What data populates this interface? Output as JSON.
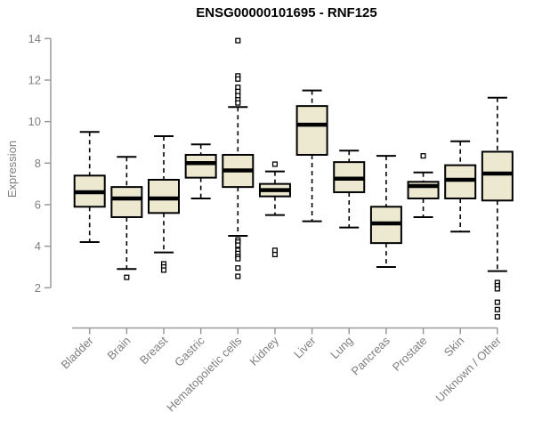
{
  "chart_data": {
    "type": "boxplot",
    "title": "ENSG00000101695 - RNF125",
    "ylabel": "Expression",
    "xlabel": "",
    "ylim": [
      2,
      14
    ],
    "yticks": [
      2,
      4,
      6,
      8,
      10,
      12,
      14
    ],
    "grid": false,
    "legend": "none",
    "categories": [
      "Bladder",
      "Brain",
      "Breast",
      "Gastric",
      "Hematopoietic cells",
      "Kidney",
      "Liver",
      "Lung",
      "Pancreas",
      "Prostate",
      "Skin",
      "Unknown / Other"
    ],
    "series": [
      {
        "category": "Bladder",
        "whisker_low": 4.2,
        "q1": 5.9,
        "median": 6.6,
        "q3": 7.4,
        "whisker_high": 9.5,
        "outliers": []
      },
      {
        "category": "Brain",
        "whisker_low": 2.9,
        "q1": 5.4,
        "median": 6.3,
        "q3": 6.85,
        "whisker_high": 8.3,
        "outliers": [
          2.5
        ]
      },
      {
        "category": "Breast",
        "whisker_low": 3.7,
        "q1": 5.6,
        "median": 6.3,
        "q3": 7.2,
        "whisker_high": 9.3,
        "outliers": [
          3.15,
          3.0,
          2.85
        ]
      },
      {
        "category": "Gastric",
        "whisker_low": 6.3,
        "q1": 7.3,
        "median": 8.0,
        "q3": 8.4,
        "whisker_high": 8.9,
        "outliers": []
      },
      {
        "category": "Hematopoietic cells",
        "whisker_low": 4.5,
        "q1": 6.85,
        "median": 7.65,
        "q3": 8.4,
        "whisker_high": 10.7,
        "outliers": [
          13.9,
          12.2,
          12.05,
          11.65,
          11.45,
          11.25,
          11.05,
          10.9,
          4.3,
          4.2,
          4.05,
          3.8,
          3.65,
          3.5,
          3.4,
          2.95,
          2.55
        ]
      },
      {
        "category": "Kidney",
        "whisker_low": 5.5,
        "q1": 6.4,
        "median": 6.7,
        "q3": 7.0,
        "whisker_high": 7.6,
        "outliers": [
          7.95,
          3.8,
          3.6
        ]
      },
      {
        "category": "Liver",
        "whisker_low": 5.2,
        "q1": 8.4,
        "median": 9.85,
        "q3": 10.75,
        "whisker_high": 11.5,
        "outliers": []
      },
      {
        "category": "Lung",
        "whisker_low": 4.9,
        "q1": 6.6,
        "median": 7.25,
        "q3": 8.05,
        "whisker_high": 8.6,
        "outliers": []
      },
      {
        "category": "Pancreas",
        "whisker_low": 3.0,
        "q1": 4.15,
        "median": 5.1,
        "q3": 5.9,
        "whisker_high": 8.35,
        "outliers": []
      },
      {
        "category": "Prostate",
        "whisker_low": 5.4,
        "q1": 6.3,
        "median": 6.9,
        "q3": 7.1,
        "whisker_high": 7.55,
        "outliers": [
          8.35
        ]
      },
      {
        "category": "Skin",
        "whisker_low": 4.7,
        "q1": 6.3,
        "median": 7.2,
        "q3": 7.9,
        "whisker_high": 9.05,
        "outliers": []
      },
      {
        "category": "Unknown / Other",
        "whisker_low": 2.8,
        "q1": 6.2,
        "median": 7.5,
        "q3": 8.55,
        "whisker_high": 11.15,
        "outliers": [
          2.25,
          2.1,
          1.95,
          1.3,
          0.95,
          0.6
        ]
      }
    ],
    "colors": {
      "box_fill": "#ede8d0",
      "box_stroke": "#000000",
      "median": "#000000",
      "whisker": "#000000",
      "outlier_stroke": "#000000",
      "outlier_fill": "#ffffff",
      "axis_line": "#9a9a9a",
      "axis_text": "#7f7f7f",
      "title": "#000000"
    }
  }
}
